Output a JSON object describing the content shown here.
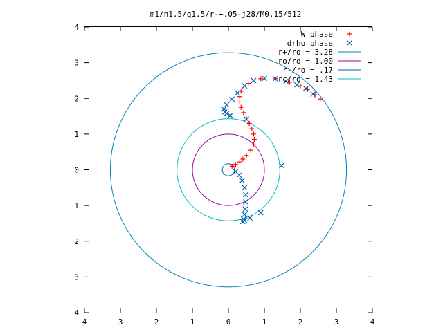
{
  "chart_data": {
    "type": "scatter",
    "title": "m1/n1.5/q1.5/r-+.05-j28/M0.15/512",
    "xlim": [
      -4,
      4
    ],
    "ylim": [
      -4,
      4
    ],
    "x_ticks": [
      {
        "value": -4,
        "label": "4"
      },
      {
        "value": -3,
        "label": "3"
      },
      {
        "value": -2,
        "label": "2"
      },
      {
        "value": -1,
        "label": "1"
      },
      {
        "value": 0,
        "label": "0"
      },
      {
        "value": 1,
        "label": "1"
      },
      {
        "value": 2,
        "label": "2"
      },
      {
        "value": 3,
        "label": "3"
      },
      {
        "value": 4,
        "label": "4"
      }
    ],
    "y_ticks": [
      {
        "value": -4,
        "label": "4"
      },
      {
        "value": -3,
        "label": "3"
      },
      {
        "value": -2,
        "label": "2"
      },
      {
        "value": -1,
        "label": "1"
      },
      {
        "value": 0,
        "label": "0"
      },
      {
        "value": 1,
        "label": "1"
      },
      {
        "value": 2,
        "label": "2"
      },
      {
        "value": 3,
        "label": "3"
      },
      {
        "value": 4,
        "label": "4"
      }
    ],
    "grid": false,
    "legend_position": "top-right",
    "series": [
      {
        "name": "W phase",
        "kind": "points",
        "marker": "+",
        "color": "#ff0000",
        "x": [
          0.1,
          0.2,
          0.3,
          0.4,
          0.5,
          0.62,
          0.7,
          0.72,
          0.7,
          0.65,
          0.58,
          0.5,
          0.42,
          0.35,
          0.3,
          0.3,
          0.35,
          0.55,
          0.9,
          1.3,
          1.7,
          2.0,
          2.2,
          2.4,
          2.55
        ],
        "y": [
          0.1,
          0.15,
          0.22,
          0.3,
          0.4,
          0.55,
          0.7,
          0.85,
          1.0,
          1.15,
          1.3,
          1.45,
          1.6,
          1.75,
          1.9,
          2.05,
          2.2,
          2.42,
          2.55,
          2.55,
          2.45,
          2.35,
          2.25,
          2.1,
          1.98
        ]
      },
      {
        "name": "drho phase",
        "kind": "points",
        "marker": "x",
        "color": "#0060ad",
        "x": [
          0.2,
          0.3,
          0.38,
          0.45,
          0.48,
          0.48,
          0.47,
          0.45,
          0.42,
          0.4,
          0.45,
          0.6,
          0.9,
          -0.05,
          -0.1,
          -0.12,
          -0.05,
          0.1,
          0.25,
          0.45,
          0.7,
          1.0,
          1.3,
          1.6,
          1.9,
          2.15,
          2.35,
          0.05,
          0.5,
          1.48
        ],
        "y": [
          -0.05,
          -0.15,
          -0.3,
          -0.5,
          -0.7,
          -0.9,
          -1.1,
          -1.25,
          -1.38,
          -1.45,
          -1.42,
          -1.35,
          -1.2,
          1.58,
          1.62,
          1.7,
          1.82,
          1.98,
          2.15,
          2.35,
          2.5,
          2.56,
          2.55,
          2.48,
          2.38,
          2.28,
          2.12,
          1.52,
          1.42,
          0.12
        ]
      },
      {
        "name": "r+/ro = 3.28",
        "kind": "circle",
        "radius": 3.28,
        "color": "#0080c0"
      },
      {
        "name": "ro/ro = 1.00",
        "kind": "circle",
        "radius": 1.0,
        "color": "#a000a0"
      },
      {
        "name": "r-/ro = .17",
        "kind": "circle",
        "radius": 0.17,
        "color": "#0060ad"
      },
      {
        "name": "rc/ro = 1.43",
        "kind": "circle",
        "radius": 1.43,
        "color": "#00c0c0"
      }
    ]
  }
}
